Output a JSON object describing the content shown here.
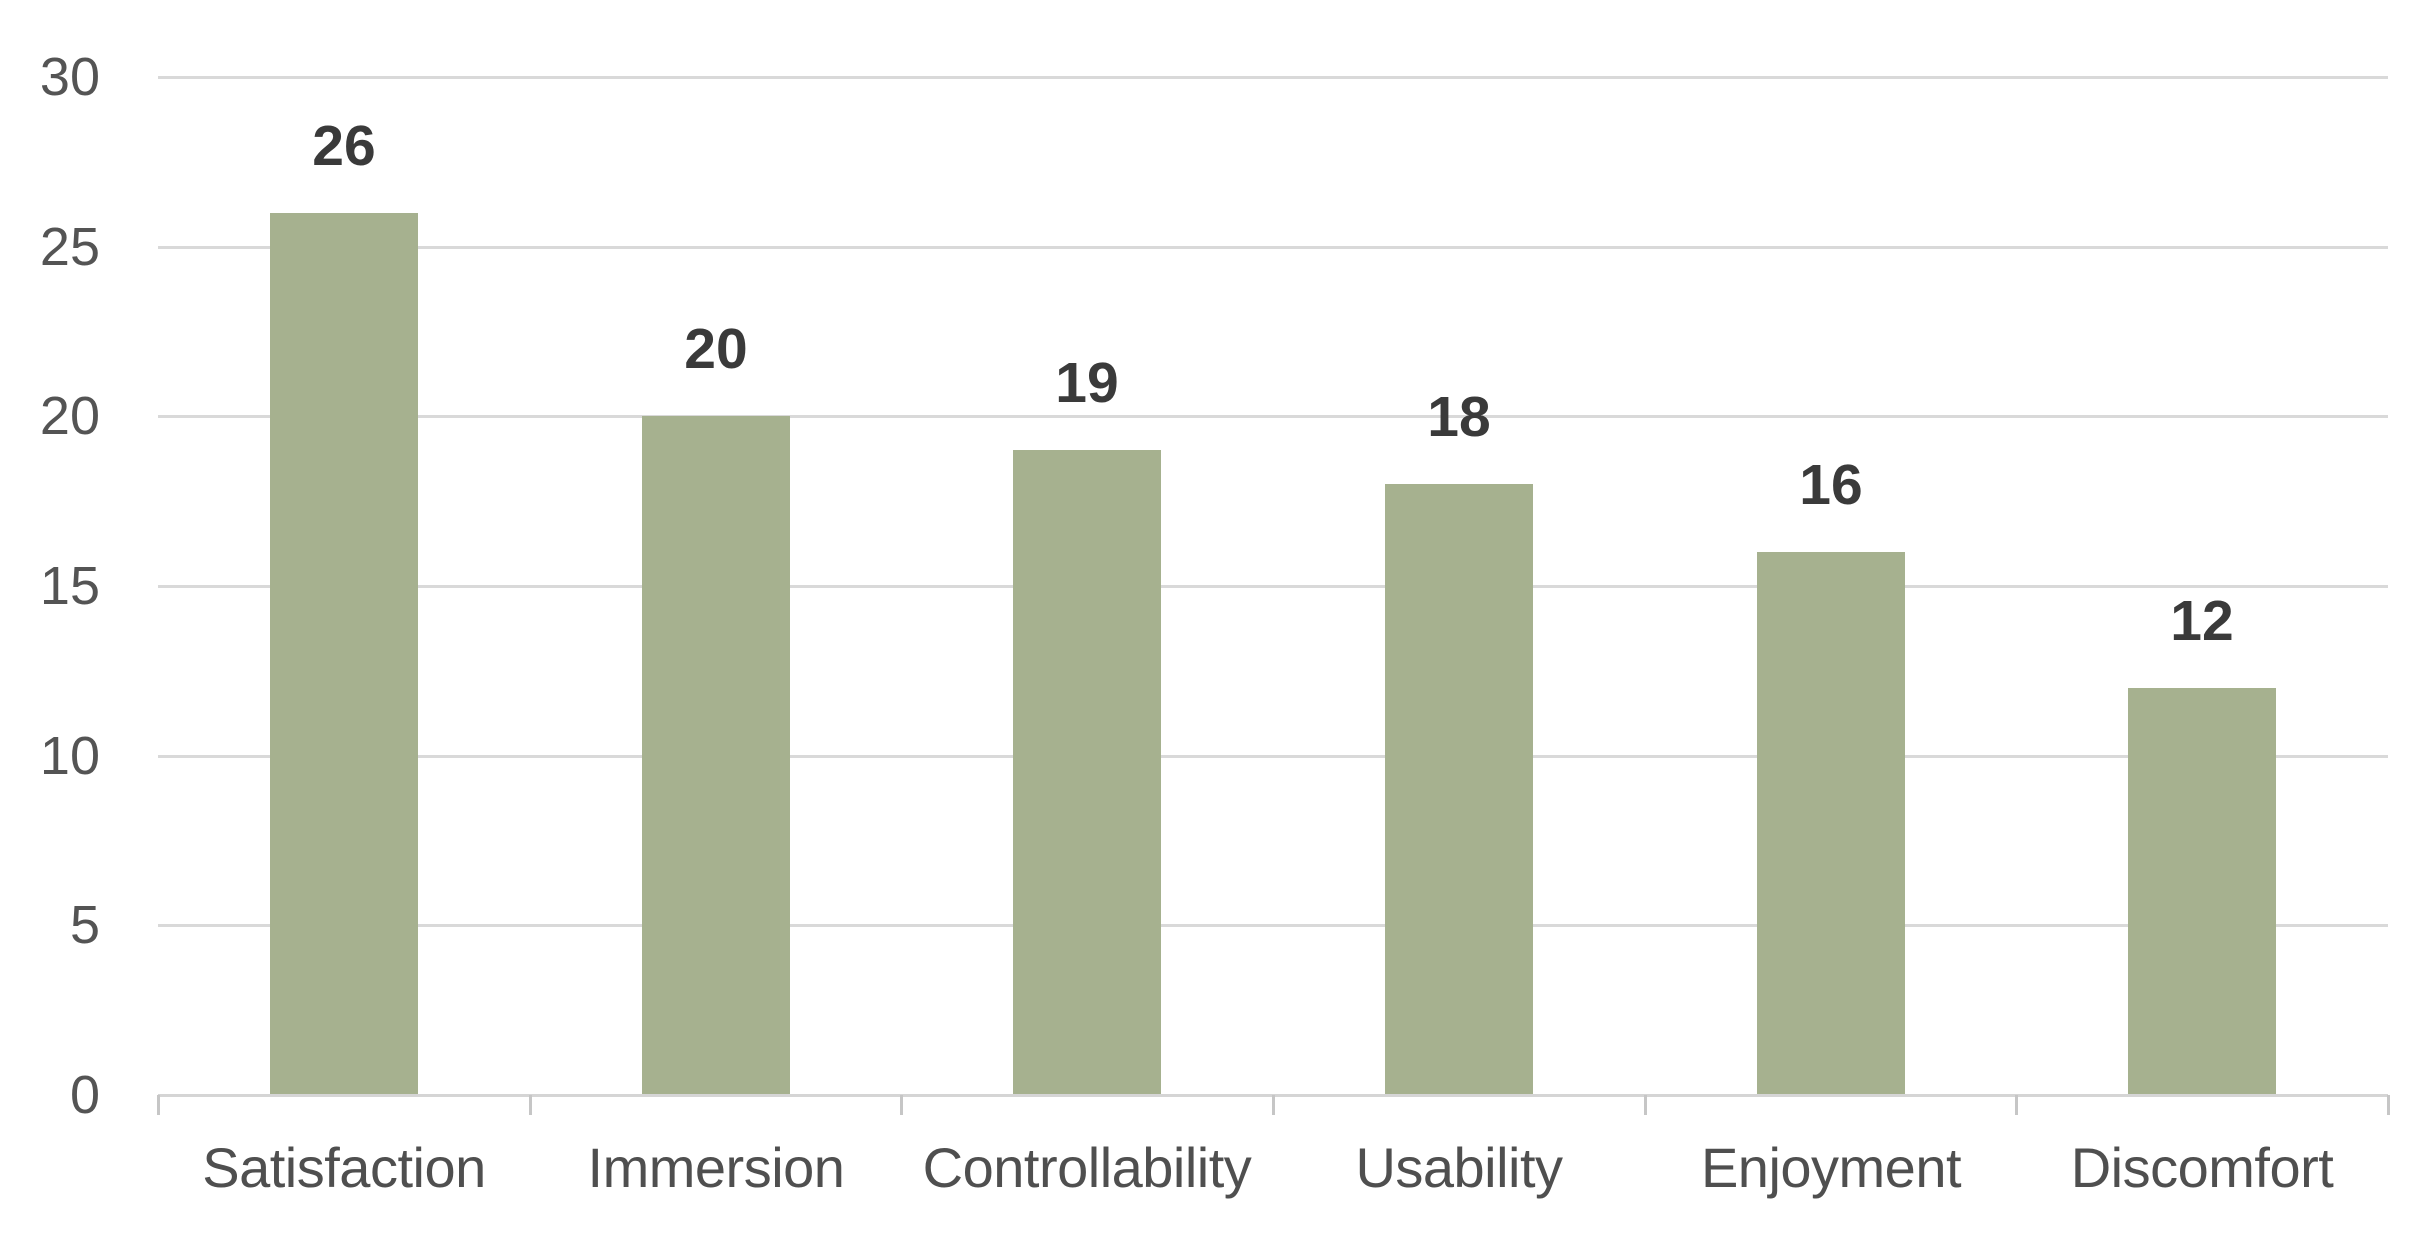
{
  "chart_data": {
    "type": "bar",
    "title": "",
    "categories": [
      "Satisfaction",
      "Immersion",
      "Controllability",
      "Usability",
      "Enjoyment",
      "Discomfort"
    ],
    "values": [
      26,
      20,
      19,
      18,
      16,
      12
    ],
    "data_labels": [
      "26",
      "20",
      "19",
      "18",
      "16",
      "12"
    ],
    "y_ticks": [
      0,
      5,
      10,
      15,
      20,
      25,
      30
    ],
    "y_tick_labels": [
      "0",
      "5",
      "10",
      "15",
      "20",
      "25",
      "30"
    ],
    "ylim": [
      0,
      30
    ],
    "xlabel": "",
    "ylabel": "",
    "legend": "none",
    "grid": "horizontal",
    "colors": {
      "bar_fill": "#a6b18f",
      "gridline": "#d9d9d9",
      "axis_line": "#d5d5d5",
      "tick_mark": "#c6c6c6",
      "y_tick_label_text": "#545454",
      "category_label_text": "#4f4f4f",
      "value_label_text": "#3a3a3a",
      "background": "#ffffff"
    }
  }
}
